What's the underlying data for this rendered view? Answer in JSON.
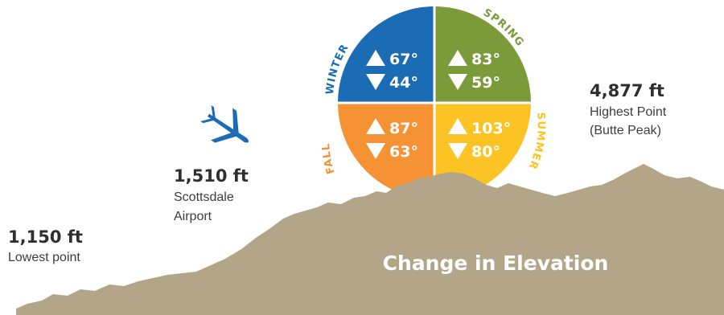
{
  "colors": {
    "ground": "#b3a588",
    "winter": "#1c6cb5",
    "spring": "#7b9a3a",
    "fall": "#f59234",
    "summer": "#fbc424",
    "airplane": "#1c6cb5",
    "text": "#2f2f2f"
  },
  "icons": {
    "airplane": "airplane-icon",
    "up": "triangle-up-icon",
    "down": "triangle-down-icon"
  },
  "title": "Change in Elevation",
  "elevation_points": {
    "lowest": {
      "value": "1,150 ft",
      "caption": "Lowest point"
    },
    "airport": {
      "value": "1,510 ft",
      "caption_line1": "Scottsdale",
      "caption_line2": "Airport"
    },
    "highest": {
      "value": "4,877 ft",
      "caption_line1": "Highest Point",
      "caption_line2": "(Butte Peak)"
    }
  },
  "seasons": {
    "winter": {
      "label": "WINTER",
      "high": "67°",
      "low": "44°"
    },
    "spring": {
      "label": "SPRING",
      "high": "83°",
      "low": "59°"
    },
    "fall": {
      "label": "FALL",
      "high": "87°",
      "low": "63°"
    },
    "summer": {
      "label": "SUMMER",
      "high": "103°",
      "low": "80°"
    }
  }
}
